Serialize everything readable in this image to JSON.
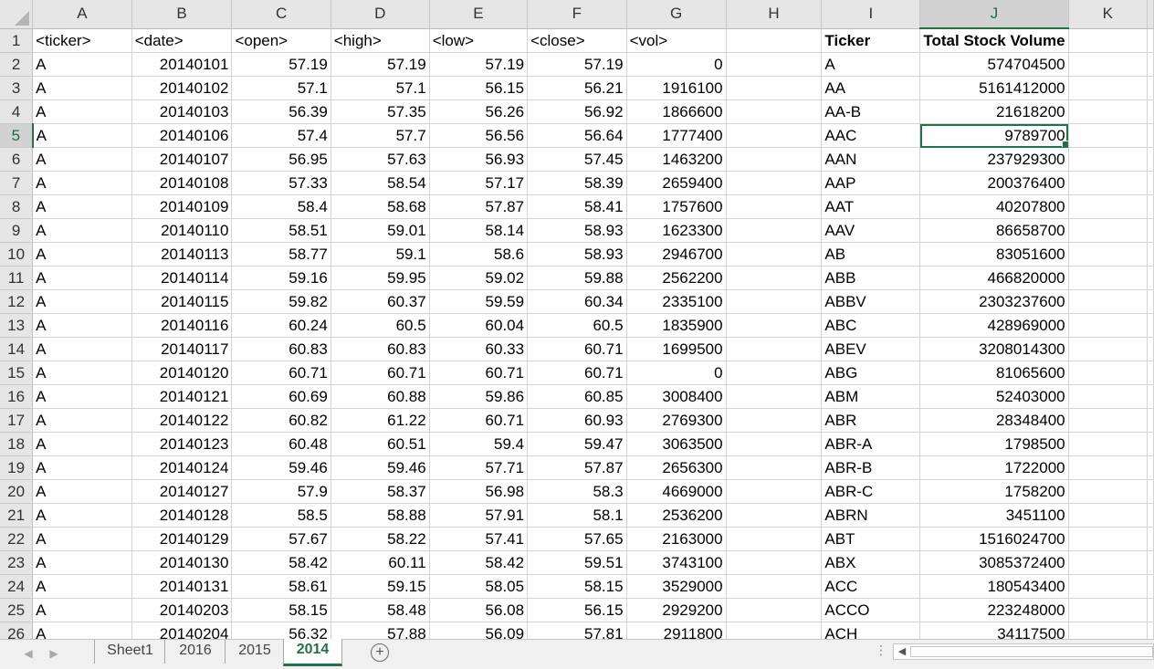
{
  "spreadsheet": {
    "columns": [
      "A",
      "B",
      "C",
      "D",
      "E",
      "F",
      "G",
      "H",
      "I",
      "J",
      "K"
    ],
    "selected_column": "J",
    "selected_row": 5,
    "active_cell": "J5",
    "header_row": {
      "A": "<ticker>",
      "B": "<date>",
      "C": "<open>",
      "D": "<high>",
      "E": "<low>",
      "F": "<close>",
      "G": "<vol>",
      "H": "",
      "I": "Ticker",
      "J": "Total Stock Volume",
      "K": ""
    },
    "rows": [
      {
        "n": 2,
        "A": "A",
        "B": "20140101",
        "C": "57.19",
        "D": "57.19",
        "E": "57.19",
        "F": "57.19",
        "G": "0",
        "I": "A",
        "J": "574704500"
      },
      {
        "n": 3,
        "A": "A",
        "B": "20140102",
        "C": "57.1",
        "D": "57.1",
        "E": "56.15",
        "F": "56.21",
        "G": "1916100",
        "I": "AA",
        "J": "5161412000"
      },
      {
        "n": 4,
        "A": "A",
        "B": "20140103",
        "C": "56.39",
        "D": "57.35",
        "E": "56.26",
        "F": "56.92",
        "G": "1866600",
        "I": "AA-B",
        "J": "21618200"
      },
      {
        "n": 5,
        "A": "A",
        "B": "20140106",
        "C": "57.4",
        "D": "57.7",
        "E": "56.56",
        "F": "56.64",
        "G": "1777400",
        "I": "AAC",
        "J": "9789700"
      },
      {
        "n": 6,
        "A": "A",
        "B": "20140107",
        "C": "56.95",
        "D": "57.63",
        "E": "56.93",
        "F": "57.45",
        "G": "1463200",
        "I": "AAN",
        "J": "237929300"
      },
      {
        "n": 7,
        "A": "A",
        "B": "20140108",
        "C": "57.33",
        "D": "58.54",
        "E": "57.17",
        "F": "58.39",
        "G": "2659400",
        "I": "AAP",
        "J": "200376400"
      },
      {
        "n": 8,
        "A": "A",
        "B": "20140109",
        "C": "58.4",
        "D": "58.68",
        "E": "57.87",
        "F": "58.41",
        "G": "1757600",
        "I": "AAT",
        "J": "40207800"
      },
      {
        "n": 9,
        "A": "A",
        "B": "20140110",
        "C": "58.51",
        "D": "59.01",
        "E": "58.14",
        "F": "58.93",
        "G": "1623300",
        "I": "AAV",
        "J": "86658700"
      },
      {
        "n": 10,
        "A": "A",
        "B": "20140113",
        "C": "58.77",
        "D": "59.1",
        "E": "58.6",
        "F": "58.93",
        "G": "2946700",
        "I": "AB",
        "J": "83051600"
      },
      {
        "n": 11,
        "A": "A",
        "B": "20140114",
        "C": "59.16",
        "D": "59.95",
        "E": "59.02",
        "F": "59.88",
        "G": "2562200",
        "I": "ABB",
        "J": "466820000"
      },
      {
        "n": 12,
        "A": "A",
        "B": "20140115",
        "C": "59.82",
        "D": "60.37",
        "E": "59.59",
        "F": "60.34",
        "G": "2335100",
        "I": "ABBV",
        "J": "2303237600"
      },
      {
        "n": 13,
        "A": "A",
        "B": "20140116",
        "C": "60.24",
        "D": "60.5",
        "E": "60.04",
        "F": "60.5",
        "G": "1835900",
        "I": "ABC",
        "J": "428969000"
      },
      {
        "n": 14,
        "A": "A",
        "B": "20140117",
        "C": "60.83",
        "D": "60.83",
        "E": "60.33",
        "F": "60.71",
        "G": "1699500",
        "I": "ABEV",
        "J": "3208014300"
      },
      {
        "n": 15,
        "A": "A",
        "B": "20140120",
        "C": "60.71",
        "D": "60.71",
        "E": "60.71",
        "F": "60.71",
        "G": "0",
        "I": "ABG",
        "J": "81065600"
      },
      {
        "n": 16,
        "A": "A",
        "B": "20140121",
        "C": "60.69",
        "D": "60.88",
        "E": "59.86",
        "F": "60.85",
        "G": "3008400",
        "I": "ABM",
        "J": "52403000"
      },
      {
        "n": 17,
        "A": "A",
        "B": "20140122",
        "C": "60.82",
        "D": "61.22",
        "E": "60.71",
        "F": "60.93",
        "G": "2769300",
        "I": "ABR",
        "J": "28348400"
      },
      {
        "n": 18,
        "A": "A",
        "B": "20140123",
        "C": "60.48",
        "D": "60.51",
        "E": "59.4",
        "F": "59.47",
        "G": "3063500",
        "I": "ABR-A",
        "J": "1798500"
      },
      {
        "n": 19,
        "A": "A",
        "B": "20140124",
        "C": "59.46",
        "D": "59.46",
        "E": "57.71",
        "F": "57.87",
        "G": "2656300",
        "I": "ABR-B",
        "J": "1722000"
      },
      {
        "n": 20,
        "A": "A",
        "B": "20140127",
        "C": "57.9",
        "D": "58.37",
        "E": "56.98",
        "F": "58.3",
        "G": "4669000",
        "I": "ABR-C",
        "J": "1758200"
      },
      {
        "n": 21,
        "A": "A",
        "B": "20140128",
        "C": "58.5",
        "D": "58.88",
        "E": "57.91",
        "F": "58.1",
        "G": "2536200",
        "I": "ABRN",
        "J": "3451100"
      },
      {
        "n": 22,
        "A": "A",
        "B": "20140129",
        "C": "57.67",
        "D": "58.22",
        "E": "57.41",
        "F": "57.65",
        "G": "2163000",
        "I": "ABT",
        "J": "1516024700"
      },
      {
        "n": 23,
        "A": "A",
        "B": "20140130",
        "C": "58.42",
        "D": "60.11",
        "E": "58.42",
        "F": "59.51",
        "G": "3743100",
        "I": "ABX",
        "J": "3085372400"
      },
      {
        "n": 24,
        "A": "A",
        "B": "20140131",
        "C": "58.61",
        "D": "59.15",
        "E": "58.05",
        "F": "58.15",
        "G": "3529000",
        "I": "ACC",
        "J": "180543400"
      },
      {
        "n": 25,
        "A": "A",
        "B": "20140203",
        "C": "58.15",
        "D": "58.48",
        "E": "56.08",
        "F": "56.15",
        "G": "2929200",
        "I": "ACCO",
        "J": "223248000"
      },
      {
        "n": 26,
        "A": "A",
        "B": "20140204",
        "C": "56.32",
        "D": "57.88",
        "E": "56.09",
        "F": "57.81",
        "G": "2911800",
        "I": "ACH",
        "J": "34117500"
      }
    ]
  },
  "sheet_tabs": {
    "tabs": [
      "Sheet1",
      "2016",
      "2015",
      "2014"
    ],
    "active": "2014",
    "add_symbol": "+",
    "prev_symbol": "◀",
    "next_symbol": "▶",
    "scroll_left_symbol": "◀"
  },
  "colors": {
    "accent": "#217346",
    "header_bg": "#e6e6e6",
    "gridline": "#d4d4d4"
  }
}
